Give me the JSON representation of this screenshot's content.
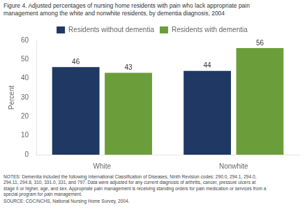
{
  "chart_data": {
    "type": "bar",
    "title": [
      "Figure 4. Adjusted percentages of nursing home residents with pain who lack appropriate pain",
      "management among the white and nonwhite residents, by dementia diagnosis, 2004"
    ],
    "categories": [
      "White",
      "Nonwhite"
    ],
    "series": [
      {
        "name": "Residents without dementia",
        "values": [
          46,
          44
        ],
        "color": "#1f3864"
      },
      {
        "name": "Residents with dementia",
        "values": [
          43,
          56
        ],
        "color": "#6b9e3a"
      }
    ],
    "ylabel": "Percent",
    "ylim": [
      0,
      60
    ],
    "yticks": [
      0,
      10,
      20,
      30,
      40,
      50,
      60
    ],
    "grid": false,
    "legend": "top",
    "data_labels": true,
    "notes": "NOTES: Dementia included the following International Classification of Diseases, Ninth Revision codes: 290.0, 294.1, 294.0,\n294.11, 294.8, 310, 331.0, 331, and 797. Data were adjusted for any current diagnosis of arthritis, cancer, pressure ulcers at\nstage II or higher, age, and sex. Appropriate pain management is receiving standing orders for pain medication or services from a\nspecial program for pain management.",
    "source": "SOURCE: CDC/NCHS, National Nursing Home Survey, 2004."
  }
}
